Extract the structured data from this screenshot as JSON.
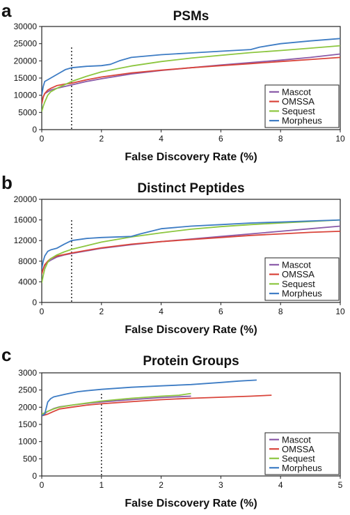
{
  "colors": {
    "Mascot": "#8a5aa8",
    "OMSSA": "#d9443a",
    "Sequest": "#8cc63f",
    "Morpheus": "#3d7cc4"
  },
  "chart_data": [
    {
      "type": "line",
      "panel": "a",
      "title": "PSMs",
      "xlabel": "False Discovery Rate (%)",
      "ylabel": "",
      "xlim": [
        0,
        10
      ],
      "ylim": [
        0,
        30000
      ],
      "xticks": [
        0,
        2,
        4,
        6,
        8,
        10
      ],
      "yticks": [
        0,
        5000,
        10000,
        15000,
        20000,
        25000,
        30000
      ],
      "reference_line_x": 1,
      "legend": [
        "Mascot",
        "OMSSA",
        "Sequest",
        "Morpheus"
      ],
      "legend_position": "right",
      "series": [
        {
          "name": "Mascot",
          "x": [
            0,
            0.05,
            0.1,
            0.2,
            0.3,
            0.5,
            0.75,
            1,
            1.5,
            2,
            3,
            4,
            5,
            6,
            7,
            8,
            9,
            10
          ],
          "y": [
            7500,
            9500,
            10500,
            11000,
            11500,
            12000,
            12500,
            13000,
            14000,
            14800,
            16200,
            17200,
            18000,
            18800,
            19500,
            20200,
            21000,
            22000
          ]
        },
        {
          "name": "OMSSA",
          "x": [
            0,
            0.05,
            0.1,
            0.2,
            0.3,
            0.5,
            0.75,
            1,
            1.5,
            2,
            3,
            4,
            5,
            6,
            7,
            8,
            9,
            10
          ],
          "y": [
            7500,
            9500,
            10500,
            11500,
            12000,
            12800,
            13200,
            13500,
            14500,
            15300,
            16500,
            17300,
            18000,
            18600,
            19200,
            19800,
            20400,
            21000
          ]
        },
        {
          "name": "Sequest",
          "x": [
            0,
            0.05,
            0.1,
            0.2,
            0.3,
            0.5,
            0.75,
            1,
            1.5,
            2,
            3,
            4,
            5,
            6,
            7,
            8,
            9,
            10
          ],
          "y": [
            5200,
            6800,
            8000,
            10000,
            11000,
            12000,
            13000,
            14000,
            15500,
            16800,
            18500,
            19800,
            20800,
            21600,
            22400,
            23000,
            23700,
            24400
          ]
        },
        {
          "name": "Morpheus",
          "x": [
            0,
            0.05,
            0.1,
            0.2,
            0.4,
            0.6,
            0.8,
            1,
            1.5,
            2,
            2.3,
            2.6,
            3,
            4,
            5,
            6,
            7,
            7.3,
            8,
            9,
            10
          ],
          "y": [
            10000,
            12500,
            14000,
            14500,
            15500,
            16500,
            17500,
            18000,
            18400,
            18600,
            19000,
            20000,
            21000,
            21800,
            22300,
            22800,
            23300,
            24000,
            25000,
            25800,
            26500
          ]
        }
      ]
    },
    {
      "type": "line",
      "panel": "b",
      "title": "Distinct Peptides",
      "xlabel": "False Discovery Rate (%)",
      "ylabel": "",
      "xlim": [
        0,
        10
      ],
      "ylim": [
        0,
        20000
      ],
      "xticks": [
        0,
        2,
        4,
        6,
        8,
        10
      ],
      "yticks": [
        0,
        4000,
        8000,
        12000,
        16000,
        20000
      ],
      "reference_line_x": 1,
      "legend": [
        "Mascot",
        "OMSSA",
        "Sequest",
        "Morpheus"
      ],
      "legend_position": "right",
      "series": [
        {
          "name": "Mascot",
          "x": [
            0,
            0.05,
            0.1,
            0.2,
            0.3,
            0.5,
            0.75,
            1,
            1.5,
            2,
            3,
            4,
            5,
            6,
            7,
            8,
            9,
            10
          ],
          "y": [
            5500,
            6500,
            7200,
            7800,
            8200,
            8800,
            9200,
            9500,
            10000,
            10500,
            11200,
            11800,
            12300,
            12800,
            13300,
            13800,
            14300,
            14800
          ]
        },
        {
          "name": "OMSSA",
          "x": [
            0,
            0.05,
            0.1,
            0.2,
            0.3,
            0.5,
            0.75,
            1,
            1.5,
            2,
            3,
            4,
            5,
            6,
            7,
            8,
            9,
            10
          ],
          "y": [
            5500,
            6500,
            7300,
            8000,
            8500,
            9000,
            9300,
            9600,
            10100,
            10600,
            11300,
            11800,
            12200,
            12600,
            13000,
            13300,
            13600,
            13800
          ]
        },
        {
          "name": "Sequest",
          "x": [
            0,
            0.05,
            0.1,
            0.2,
            0.3,
            0.5,
            0.75,
            1,
            1.5,
            2,
            3,
            4,
            5,
            6,
            7,
            8,
            9,
            10
          ],
          "y": [
            3800,
            5200,
            6500,
            7800,
            8500,
            9200,
            9800,
            10300,
            11000,
            11700,
            12700,
            13500,
            14200,
            14700,
            15100,
            15400,
            15700,
            16000
          ]
        },
        {
          "name": "Morpheus",
          "x": [
            0,
            0.05,
            0.1,
            0.2,
            0.3,
            0.5,
            0.75,
            1,
            1.5,
            2,
            3,
            3.3,
            4,
            5,
            6,
            7,
            8,
            9,
            10
          ],
          "y": [
            6500,
            8000,
            9000,
            9900,
            10200,
            10500,
            11300,
            12000,
            12400,
            12600,
            12800,
            13300,
            14300,
            14800,
            15100,
            15400,
            15600,
            15800,
            16000
          ]
        }
      ]
    },
    {
      "type": "line",
      "panel": "c",
      "title": "Protein Groups",
      "xlabel": "False Discovery Rate (%)",
      "ylabel": "",
      "xlim": [
        0,
        5
      ],
      "ylim": [
        0,
        3000
      ],
      "xticks": [
        0,
        1,
        2,
        3,
        4,
        5
      ],
      "yticks": [
        0,
        500,
        1000,
        1500,
        2000,
        2500,
        3000
      ],
      "reference_line_x": 1,
      "legend": [
        "Mascot",
        "OMSSA",
        "Sequest",
        "Morpheus"
      ],
      "legend_position": "right",
      "series": [
        {
          "name": "Mascot",
          "x": [
            0,
            0.1,
            0.2,
            0.3,
            0.5,
            0.75,
            1,
            1.5,
            2,
            2.5
          ],
          "y": [
            1750,
            1880,
            1960,
            2010,
            2060,
            2110,
            2150,
            2220,
            2280,
            2320
          ]
        },
        {
          "name": "OMSSA",
          "x": [
            0,
            0.1,
            0.2,
            0.3,
            0.5,
            0.75,
            1,
            1.5,
            2,
            2.5,
            3,
            3.5,
            3.85
          ],
          "y": [
            1750,
            1800,
            1880,
            1950,
            2000,
            2060,
            2100,
            2160,
            2220,
            2260,
            2290,
            2320,
            2350
          ]
        },
        {
          "name": "Sequest",
          "x": [
            0,
            0.1,
            0.2,
            0.3,
            0.5,
            0.75,
            1,
            1.5,
            2,
            2.3,
            2.5
          ],
          "y": [
            1800,
            1880,
            1950,
            2000,
            2060,
            2120,
            2180,
            2260,
            2320,
            2350,
            2400
          ]
        },
        {
          "name": "Morpheus",
          "x": [
            0,
            0.05,
            0.1,
            0.15,
            0.2,
            0.4,
            0.6,
            0.75,
            1,
            1.5,
            2,
            2.5,
            3,
            3.3,
            3.6
          ],
          "y": [
            1750,
            1800,
            2150,
            2250,
            2300,
            2380,
            2450,
            2480,
            2520,
            2580,
            2620,
            2660,
            2720,
            2760,
            2790
          ]
        }
      ]
    }
  ]
}
